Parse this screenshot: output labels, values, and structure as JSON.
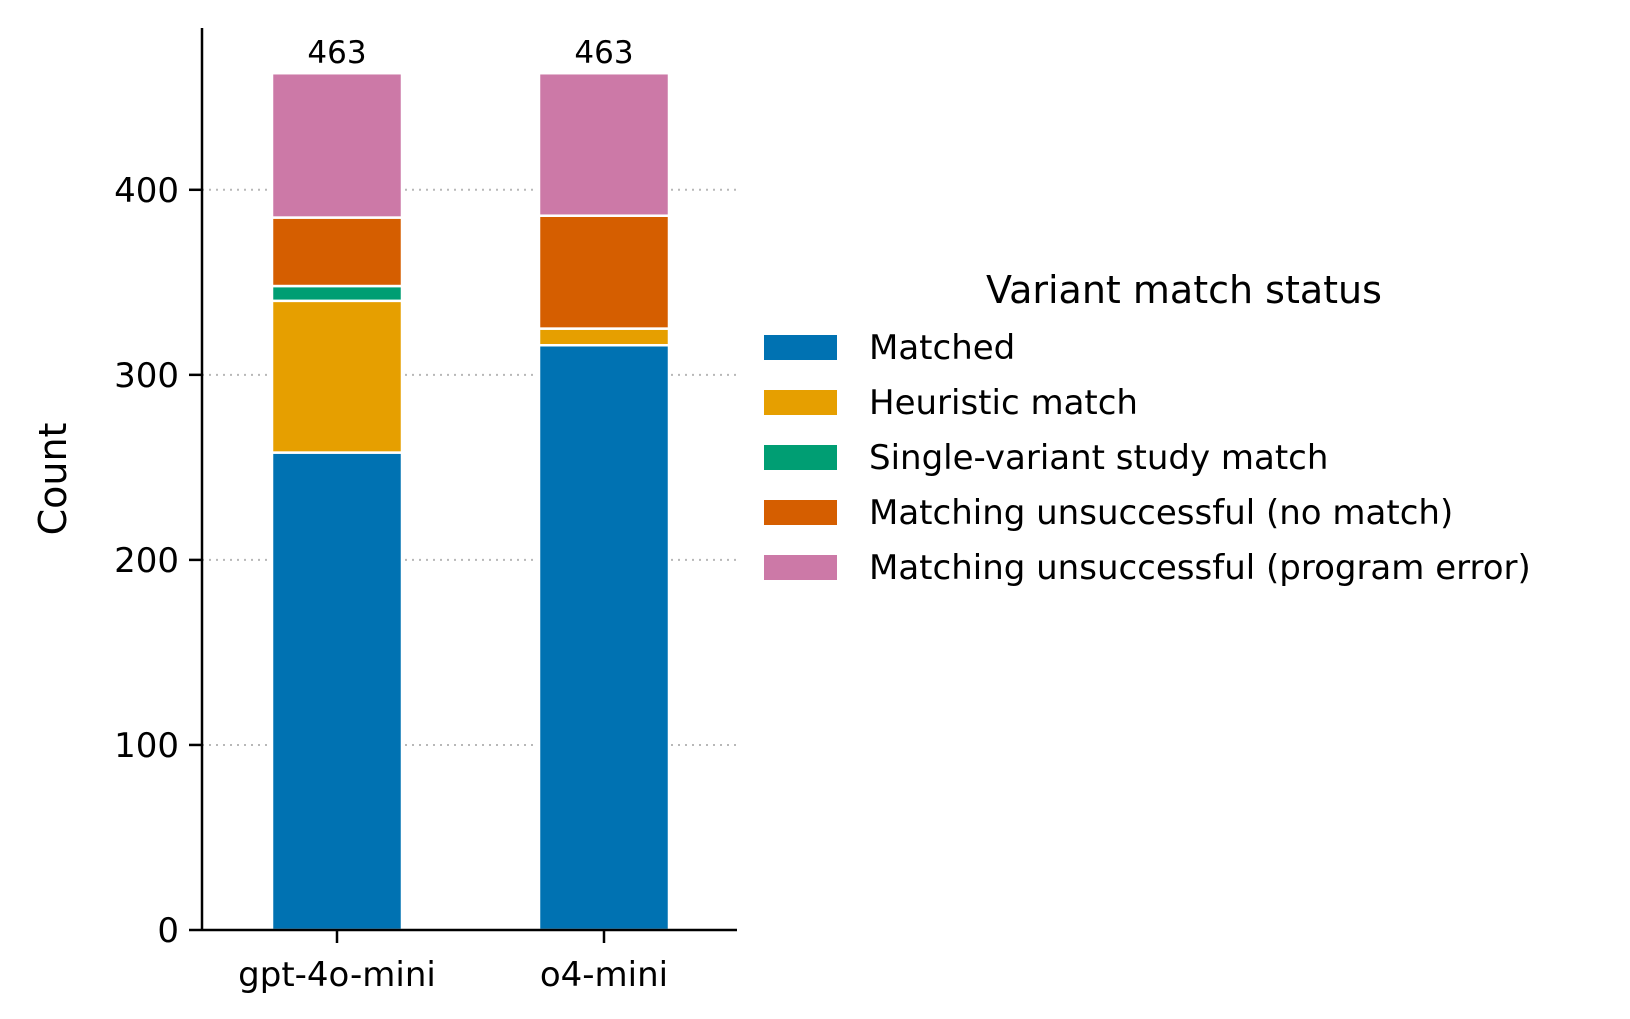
{
  "chart_data": {
    "type": "bar",
    "stacked": true,
    "categories": [
      "gpt-4o-mini",
      "o4-mini"
    ],
    "series": [
      {
        "name": "Matched",
        "color": "#0072B2",
        "values": [
          258,
          316
        ]
      },
      {
        "name": "Heuristic match",
        "color": "#E69F00",
        "values": [
          82,
          9
        ]
      },
      {
        "name": "Single-variant study match",
        "color": "#009E73",
        "values": [
          8,
          0
        ]
      },
      {
        "name": "Matching unsuccessful (no match)",
        "color": "#D55E00",
        "values": [
          37,
          61
        ]
      },
      {
        "name": "Matching unsuccessful (program error)",
        "color": "#CC79A7",
        "values": [
          78,
          77
        ]
      }
    ],
    "totals": [
      "463",
      "463"
    ],
    "ylabel": "Count",
    "xlabel": "",
    "ylim": [
      0,
      487
    ],
    "yticks": [
      "0",
      "100",
      "200",
      "300",
      "400"
    ],
    "grid": "horizontal dotted",
    "legend": {
      "title": "Variant match status",
      "placement": "right"
    }
  }
}
